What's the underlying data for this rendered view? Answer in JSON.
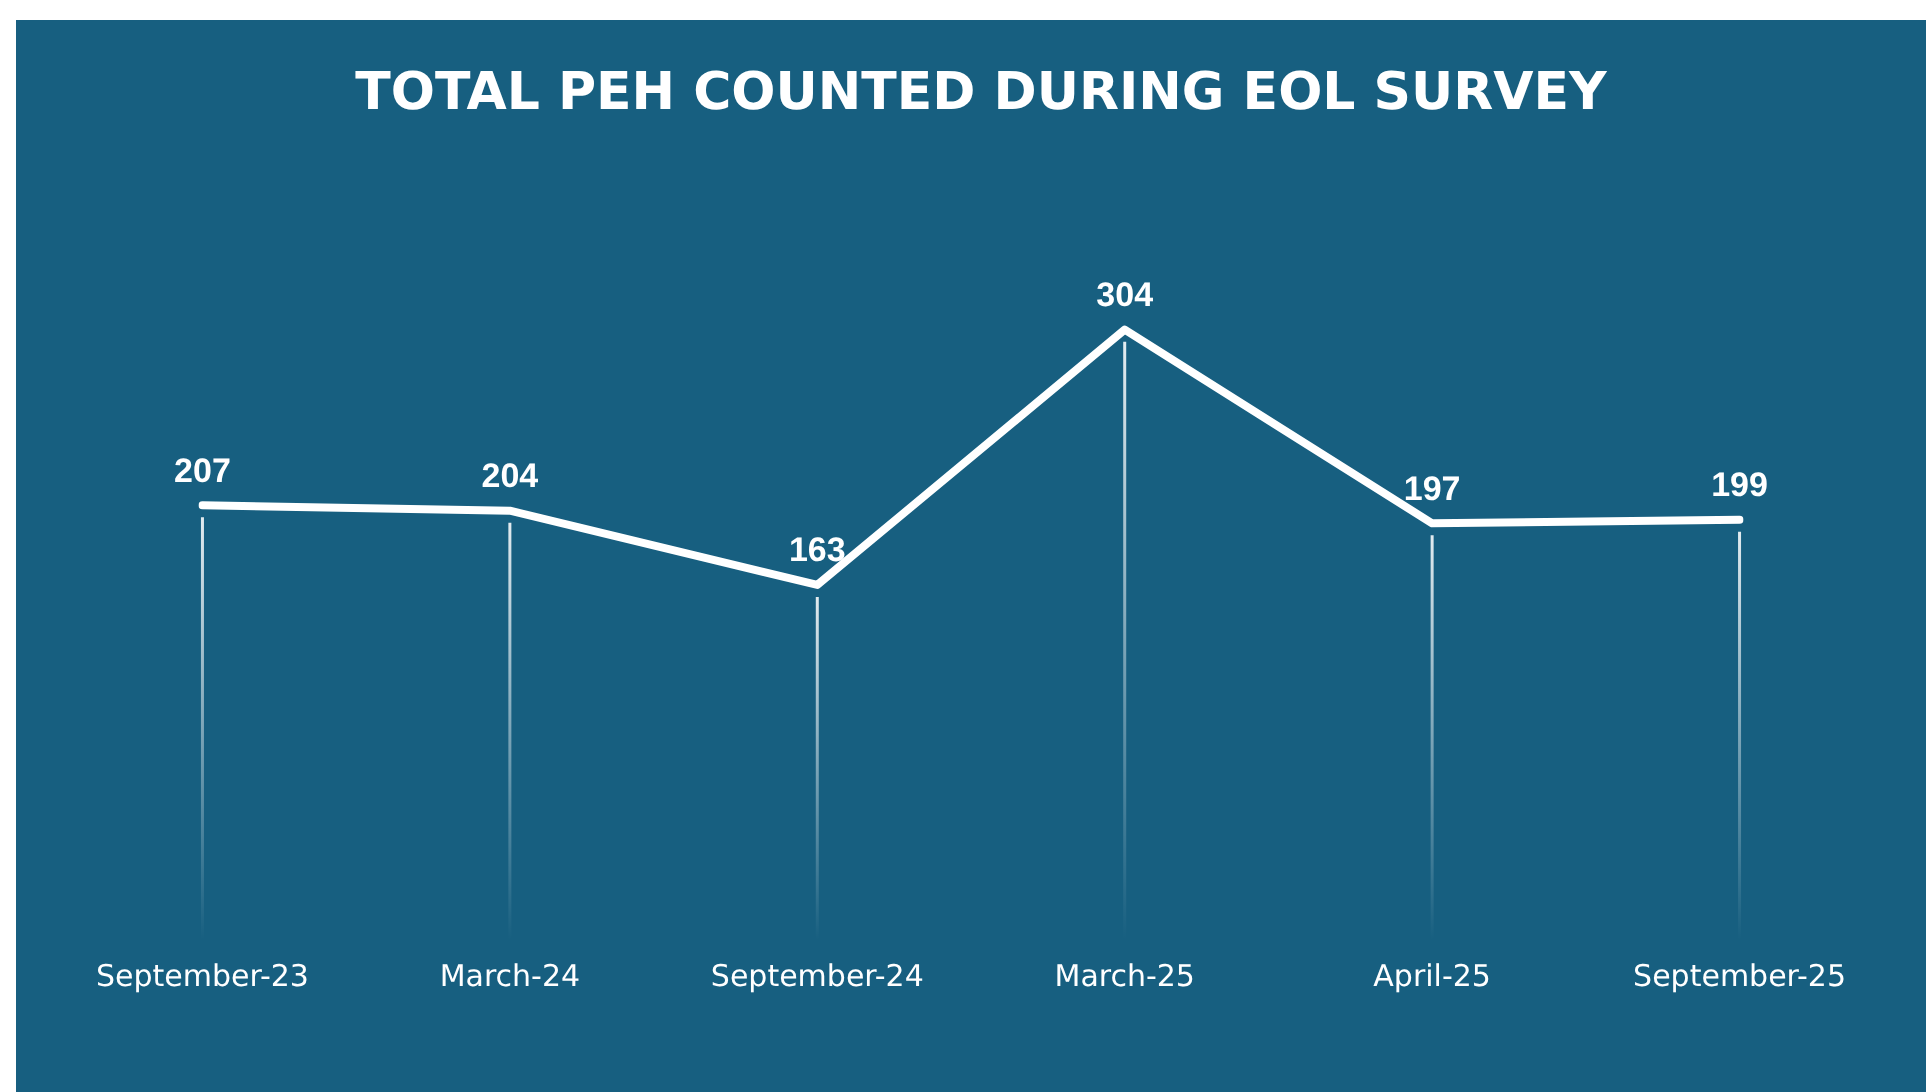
{
  "chart_data": {
    "type": "line",
    "title": "TOTAL PEH COUNTED DURING EOL SURVEY",
    "categories": [
      "September-23",
      "March-24",
      "September-24",
      "March-25",
      "April-25",
      "September-25"
    ],
    "series": [
      {
        "color": "#ffffff",
        "values": [
          207,
          204,
          163,
          304,
          197,
          199
        ]
      }
    ],
    "data_labels": true,
    "grid": "x",
    "legend": false,
    "line_style": "solid"
  }
}
